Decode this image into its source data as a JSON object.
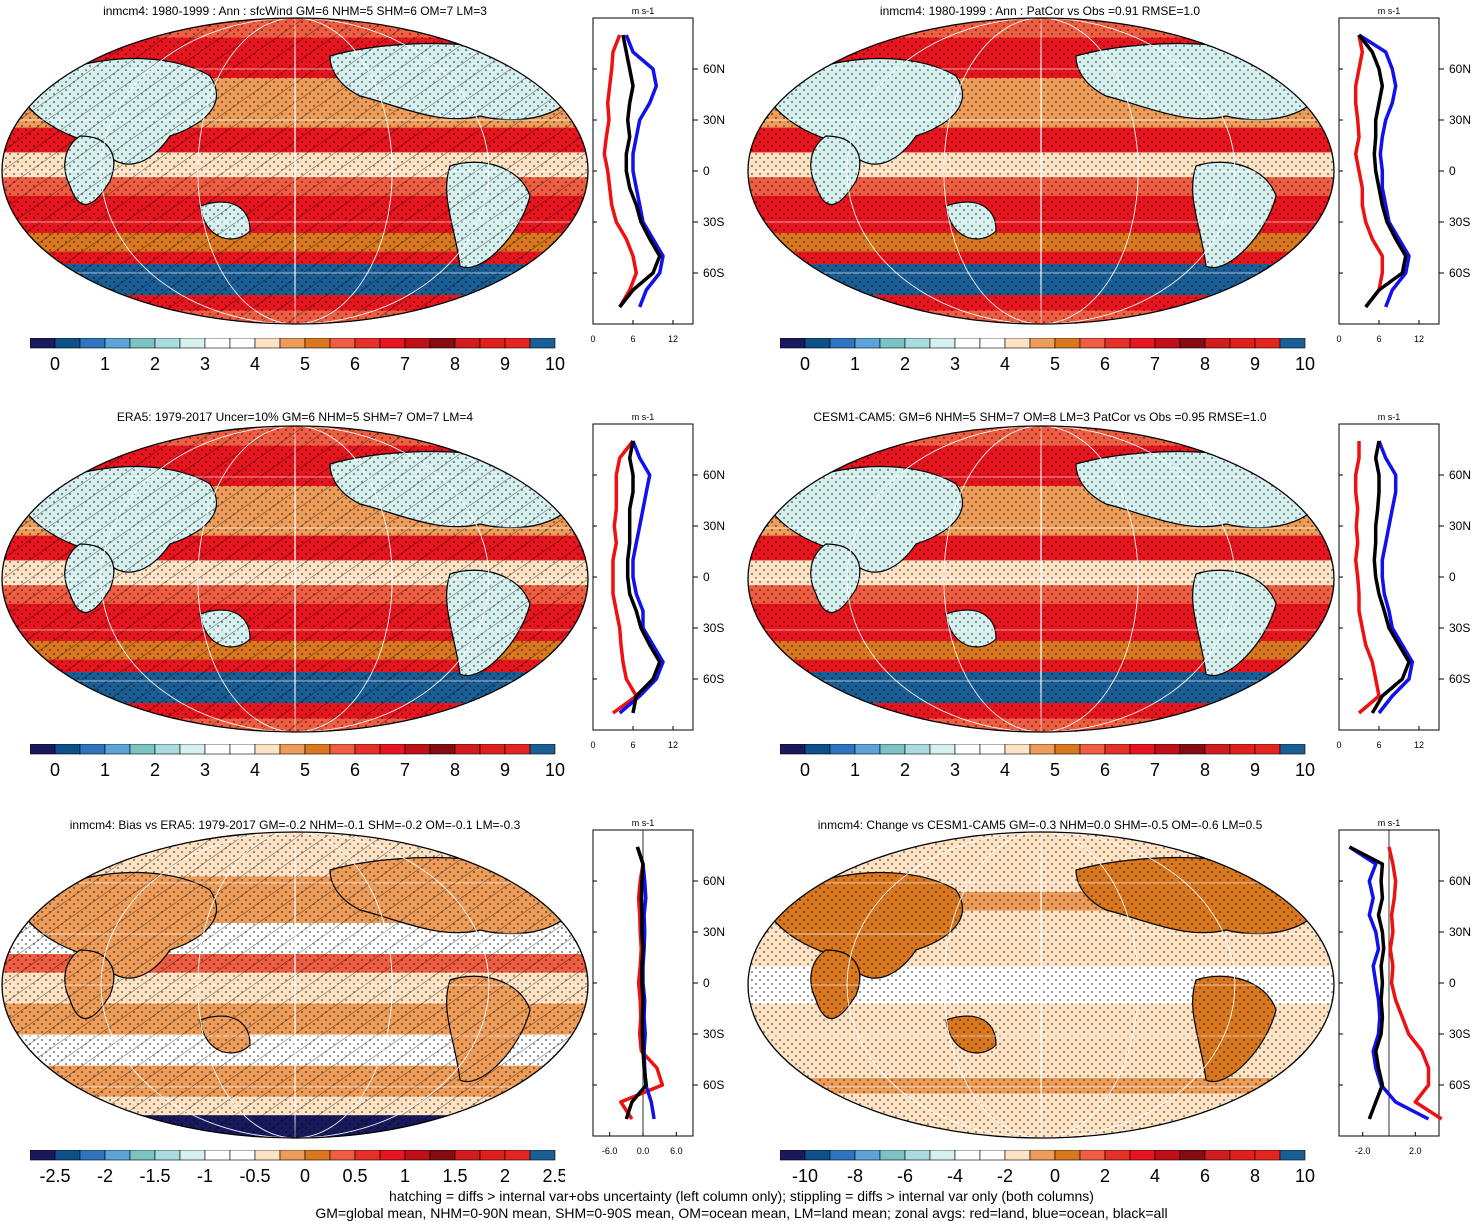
{
  "colors": {
    "land": "#ee1111",
    "ocean": "#1111ee",
    "all": "#000000",
    "abs_palette": [
      "#19195e",
      "#0f4f8a",
      "#2e74c0",
      "#5ba3d8",
      "#7cc3c3",
      "#a9dcde",
      "#d6f0f0",
      "#ffffff",
      "#ffffff",
      "#fde2c3",
      "#ee9c5a",
      "#d9781e",
      "#ef5e42",
      "#e63028",
      "#e8141e",
      "#c00f18",
      "#850c12",
      "#d11d1e",
      "#e0201a",
      "#e52522",
      "#1a5e96"
    ],
    "diff_palette": [
      "#19195e",
      "#0f4f8a",
      "#2e74c0",
      "#5ba3d8",
      "#7cc3c3",
      "#a9dcde",
      "#d6f0f0",
      "#ffffff",
      "#ffffff",
      "#fde2c3",
      "#ee9c5a",
      "#d9781e",
      "#ef5e42",
      "#e63028",
      "#e8141e",
      "#c00f18",
      "#850c12",
      "#d11d1e",
      "#e0201a",
      "#e52522",
      "#1a5e96"
    ]
  },
  "panels": [
    {
      "title": "inmcm4: 1980-1999 : Ann : sfcWind GM=6 NHM=5 SHM=6 OM=7 LM=3",
      "map_fill": "abs",
      "hatch": true,
      "cbar_labels": [
        "0",
        "1",
        "2",
        "3",
        "4",
        "5",
        "6",
        "7",
        "8",
        "9",
        "10"
      ],
      "units": "m s-1",
      "zonal_xticks": [
        "0",
        "6",
        "12"
      ],
      "zonal_yticks": [
        "60N",
        "30N",
        "0",
        "30S",
        "60S"
      ]
    },
    {
      "title": "inmcm4: 1980-1999 : Ann : PatCor vs Obs =0.91 RMSE=1.0",
      "map_fill": "abs",
      "hatch": false,
      "cbar_labels": [
        "0",
        "1",
        "2",
        "3",
        "4",
        "5",
        "6",
        "7",
        "8",
        "9",
        "10"
      ],
      "units": "m s-1",
      "zonal_xticks": [
        "0",
        "6",
        "12"
      ],
      "zonal_yticks": [
        "60N",
        "30N",
        "0",
        "30S",
        "60S"
      ]
    },
    {
      "title": "ERA5: 1979-2017 Uncer=10% GM=6 NHM=5 SHM=7 OM=7 LM=4",
      "map_fill": "abs",
      "hatch": true,
      "cbar_labels": [
        "0",
        "1",
        "2",
        "3",
        "4",
        "5",
        "6",
        "7",
        "8",
        "9",
        "10"
      ],
      "units": "m s-1",
      "zonal_xticks": [
        "0",
        "6",
        "12"
      ],
      "zonal_yticks": [
        "60N",
        "30N",
        "0",
        "30S",
        "60S"
      ]
    },
    {
      "title": "CESM1-CAM5: GM=6 NHM=5 SHM=7 OM=8 LM=3 PatCor vs Obs =0.95 RMSE=1.0",
      "map_fill": "abs",
      "hatch": false,
      "cbar_labels": [
        "0",
        "1",
        "2",
        "3",
        "4",
        "5",
        "6",
        "7",
        "8",
        "9",
        "10"
      ],
      "units": "m s-1",
      "zonal_xticks": [
        "0",
        "6",
        "12"
      ],
      "zonal_yticks": [
        "60N",
        "30N",
        "0",
        "30S",
        "60S"
      ]
    },
    {
      "title": "inmcm4: Bias vs ERA5: 1979-2017 GM=-0.2 NHM=-0.1 SHM=-0.2 OM=-0.1 LM=-0.3",
      "map_fill": "bias",
      "hatch": true,
      "cbar_labels": [
        "-2.5",
        "-2",
        "-1.5",
        "-1",
        "-0.5",
        "0",
        "0.5",
        "1",
        "1.5",
        "2",
        "2.5"
      ],
      "units": "m s-1",
      "zonal_xticks": [
        "-6.0",
        "0.0",
        "6.0"
      ],
      "zonal_yticks": [
        "60N",
        "30N",
        "0",
        "30S",
        "60S"
      ]
    },
    {
      "title": "inmcm4: Change vs CESM1-CAM5 GM=-0.3 NHM=0.0 SHM=-0.5 OM=-0.6 LM=0.5",
      "map_fill": "change",
      "hatch": false,
      "cbar_labels": [
        "-10",
        "-8",
        "-6",
        "-4",
        "-2",
        "0",
        "2",
        "4",
        "6",
        "8",
        "10"
      ],
      "units": "m s-1",
      "zonal_xticks": [
        "-2.0",
        "2.0"
      ],
      "zonal_yticks": [
        "60N",
        "30N",
        "0",
        "30S",
        "60S"
      ]
    }
  ],
  "footer": {
    "line1": "hatching = diffs > internal var+obs uncertainty (left column only); stippling = diffs > internal var only (both columns)",
    "line2": "GM=global mean, NHM=0-90N mean, SHM=0-90S mean, OM=ocean mean, LM=land mean; zonal avgs: red=land, blue=ocean, black=all"
  },
  "chart_data": [
    {
      "type": "line",
      "title": "inmcm4: 1980-1999 : Ann : sfcWind GM=6 NHM=5 SHM=6 OM=7 LM=3",
      "xlabel": "m s-1",
      "xlim": [
        0,
        15
      ],
      "ylim": [
        -90,
        90
      ],
      "y": [
        80,
        70,
        60,
        50,
        40,
        30,
        20,
        10,
        0,
        -10,
        -20,
        -30,
        -40,
        -50,
        -60,
        -70,
        -80
      ],
      "series": [
        {
          "name": "land",
          "x": [
            4,
            3,
            2.8,
            2.5,
            2.2,
            2.4,
            2,
            1.7,
            2.2,
            2.5,
            2.8,
            3.5,
            5,
            6,
            6.5,
            5.5,
            4
          ]
        },
        {
          "name": "ocean",
          "x": [
            5,
            6,
            9,
            9.5,
            8.5,
            7,
            6.5,
            6,
            6,
            6.5,
            7,
            7.5,
            9,
            10.5,
            10,
            8,
            7
          ]
        },
        {
          "name": "all",
          "x": [
            4.5,
            5,
            5.5,
            6,
            5.5,
            5.2,
            5.5,
            5,
            5,
            5.5,
            6.5,
            7.2,
            8.5,
            10,
            9,
            6,
            4
          ]
        }
      ]
    },
    {
      "type": "line",
      "title": "inmcm4: 1980-1999 : Ann : PatCor vs Obs =0.91 RMSE=1.0",
      "xlabel": "m s-1",
      "xlim": [
        0,
        15
      ],
      "ylim": [
        -90,
        90
      ],
      "y": [
        80,
        70,
        60,
        50,
        40,
        30,
        20,
        10,
        0,
        -10,
        -20,
        -30,
        -40,
        -50,
        -60,
        -70,
        -80
      ],
      "series": [
        {
          "name": "land",
          "x": [
            3,
            3.5,
            3,
            2.5,
            2.5,
            2.8,
            3,
            2.5,
            3,
            3.5,
            3.5,
            4,
            5,
            6.5,
            6.5,
            6,
            4
          ]
        },
        {
          "name": "ocean",
          "x": [
            3,
            7,
            8,
            8.5,
            8,
            7,
            6.5,
            6.2,
            6.5,
            6.5,
            7,
            7.5,
            9,
            10.5,
            10,
            8,
            7
          ]
        },
        {
          "name": "all",
          "x": [
            3,
            5,
            6,
            6.5,
            6,
            5.5,
            5.5,
            5.3,
            5.5,
            6,
            6.5,
            7.2,
            8.5,
            10,
            9.5,
            6,
            4
          ]
        }
      ]
    },
    {
      "type": "line",
      "title": "ERA5: 1979-2017 Uncer=10% GM=6 NHM=5 SHM=7 OM=7 LM=4",
      "xlabel": "m s-1",
      "xlim": [
        0,
        15
      ],
      "ylim": [
        -90,
        90
      ],
      "y": [
        80,
        70,
        60,
        50,
        40,
        30,
        20,
        10,
        0,
        -10,
        -20,
        -30,
        -40,
        -50,
        -60,
        -70,
        -80
      ],
      "series": [
        {
          "name": "land",
          "x": [
            6,
            4,
            3.5,
            3.5,
            3.5,
            3.2,
            3.5,
            3,
            3,
            3,
            3.5,
            4,
            4.2,
            4.5,
            5,
            6.5,
            3
          ]
        },
        {
          "name": "ocean",
          "x": [
            6,
            7,
            8.5,
            8,
            7.5,
            7,
            6.5,
            6,
            6,
            6.5,
            7.5,
            7.5,
            9,
            10.5,
            9.5,
            7,
            4
          ]
        },
        {
          "name": "all",
          "x": [
            6,
            5.5,
            6,
            6,
            5.5,
            5.5,
            5.5,
            5.2,
            5.2,
            5.5,
            6.5,
            7.2,
            8.5,
            10,
            9,
            6.5,
            6
          ]
        }
      ]
    },
    {
      "type": "line",
      "title": "CESM1-CAM5: GM=6 NHM=5 SHM=7 OM=8 LM=3 PatCor vs Obs =0.95 RMSE=1.0",
      "xlabel": "m s-1",
      "xlim": [
        0,
        15
      ],
      "ylim": [
        -90,
        90
      ],
      "y": [
        80,
        70,
        60,
        50,
        40,
        30,
        20,
        10,
        0,
        -10,
        -20,
        -30,
        -40,
        -50,
        -60,
        -70,
        -80
      ],
      "series": [
        {
          "name": "land",
          "x": [
            3,
            3,
            2.5,
            2.5,
            2.8,
            2.6,
            2.8,
            2.5,
            2.8,
            3,
            3,
            3.5,
            4,
            5,
            5.5,
            6,
            3
          ]
        },
        {
          "name": "ocean",
          "x": [
            6,
            7,
            8.5,
            8.5,
            8,
            7.5,
            7,
            6.5,
            6.5,
            6.8,
            7.5,
            8,
            9.5,
            11,
            10.5,
            8,
            6
          ]
        },
        {
          "name": "all",
          "x": [
            6,
            5.5,
            6,
            6,
            5.8,
            5.5,
            5.5,
            5.3,
            5.5,
            6,
            6.8,
            7.5,
            9,
            10.5,
            9.5,
            6.5,
            5
          ]
        }
      ]
    },
    {
      "type": "line",
      "title": "inmcm4: Bias vs ERA5: 1979-2017 GM=-0.2 NHM=-0.1 SHM=-0.2 OM=-0.1 LM=-0.3",
      "xlabel": "m s-1",
      "xlim": [
        -9,
        9
      ],
      "ylim": [
        -90,
        90
      ],
      "y": [
        80,
        70,
        60,
        50,
        40,
        30,
        20,
        10,
        0,
        -10,
        -20,
        -30,
        -40,
        -50,
        -60,
        -70,
        -80
      ],
      "series": [
        {
          "name": "land",
          "x": [
            -1,
            0,
            -0.5,
            -0.8,
            -0.6,
            -0.5,
            -0.3,
            -0.5,
            -0.8,
            -0.5,
            -0.4,
            -0.6,
            -0.3,
            2.5,
            3.5,
            -4,
            -2
          ]
        },
        {
          "name": "ocean",
          "x": [
            -1,
            0,
            0.3,
            0.5,
            0.2,
            0.3,
            0.2,
            0,
            0,
            0.3,
            0.2,
            0.4,
            0.2,
            0.3,
            0.5,
            1.5,
            2
          ]
        },
        {
          "name": "all",
          "x": [
            -1,
            0,
            -0.2,
            -0.3,
            -0.2,
            -0.2,
            0,
            -0.2,
            -0.2,
            0,
            -0.1,
            -0.1,
            0,
            0.2,
            0.6,
            -2,
            -3
          ]
        }
      ]
    },
    {
      "type": "line",
      "title": "inmcm4: Change vs CESM1-CAM5 GM=-0.3 NHM=0.0 SHM=-0.5 OM=-0.6 LM=0.5",
      "xlabel": "m s-1",
      "xlim": [
        -3.8,
        3.8
      ],
      "ylim": [
        -90,
        90
      ],
      "y": [
        80,
        70,
        60,
        50,
        40,
        30,
        20,
        10,
        0,
        -10,
        -20,
        -30,
        -40,
        -50,
        -60,
        -70,
        -80
      ],
      "series": [
        {
          "name": "land",
          "x": [
            0,
            0.3,
            0.5,
            0.4,
            0.2,
            0.3,
            0.1,
            0.3,
            0.2,
            0.5,
            1,
            1.5,
            2.5,
            3,
            3,
            2,
            4
          ]
        },
        {
          "name": "ocean",
          "x": [
            -3,
            -1,
            -1.5,
            -1.2,
            -1.5,
            -1,
            -0.8,
            -1.2,
            -1,
            -0.8,
            -0.7,
            -0.8,
            -1.2,
            -1,
            -0.6,
            0.5,
            3
          ]
        },
        {
          "name": "all",
          "x": [
            -3,
            -0.5,
            -0.6,
            -0.5,
            -0.8,
            -0.5,
            -0.4,
            -0.6,
            -0.5,
            -0.6,
            -0.5,
            -0.6,
            -1,
            -0.8,
            -0.5,
            -1,
            -1.5
          ]
        }
      ]
    }
  ]
}
